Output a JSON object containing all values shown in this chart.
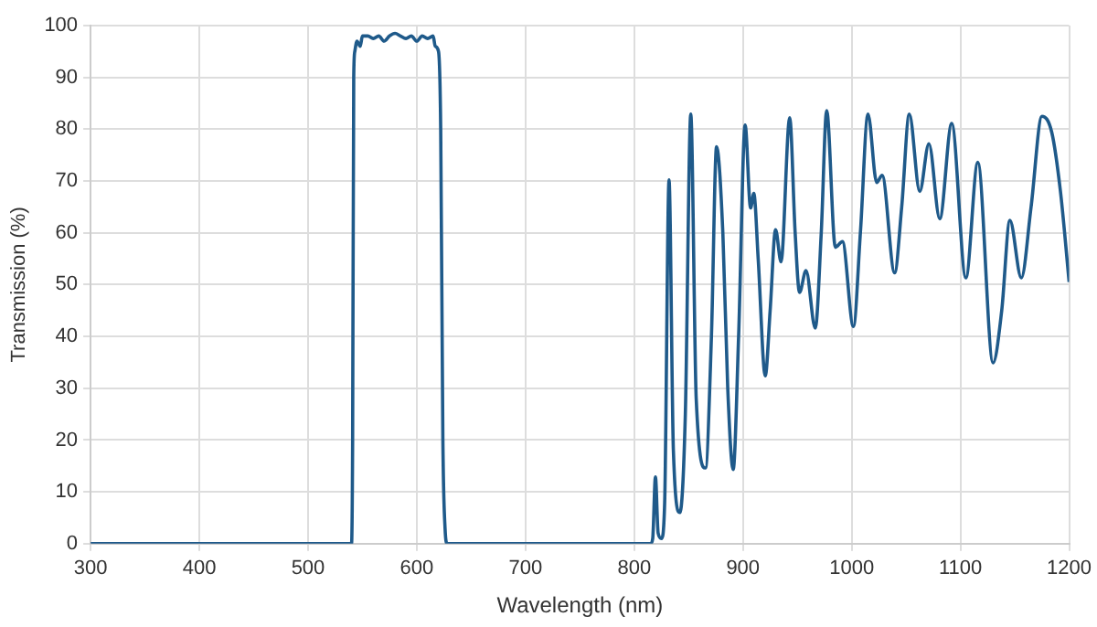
{
  "chart_data": {
    "type": "line",
    "xlabel": "Wavelength (nm)",
    "ylabel": "Transmission (%)",
    "x": [
      300,
      540,
      541,
      542,
      543,
      545,
      548,
      550,
      555,
      560,
      565,
      570,
      575,
      580,
      585,
      590,
      595,
      600,
      605,
      610,
      615,
      617,
      620,
      622,
      624,
      626,
      628,
      815,
      817,
      819.5,
      822,
      825,
      828,
      832,
      836,
      842,
      847,
      852,
      857,
      865.5,
      871,
      875.7,
      881.5,
      886,
      891,
      896,
      902,
      907,
      910,
      914,
      920.5,
      925,
      930,
      935,
      943,
      948,
      952,
      958,
      966.5,
      972,
      977,
      985,
      991.5,
      1001.6,
      1008,
      1015,
      1023,
      1028,
      1039.5,
      1046,
      1053,
      1062.6,
      1071,
      1081,
      1092,
      1105,
      1116,
      1130,
      1138,
      1145.5,
      1156,
      1165,
      1175,
      1184,
      1192,
      1200
    ],
    "series": [
      {
        "color": "#1f5a8a",
        "values": [
          0,
          0,
          20,
          90,
          95,
          97,
          96,
          98,
          98,
          97.5,
          98,
          97,
          98,
          98.5,
          98,
          97.5,
          98,
          97,
          98,
          97.5,
          98,
          96,
          95,
          80,
          20,
          3,
          0,
          0,
          1,
          12.9,
          2,
          1,
          8,
          70.2,
          18,
          6,
          25,
          82.9,
          28,
          14.6,
          40,
          76.6,
          60,
          30,
          14.3,
          40,
          80.8,
          64.8,
          67.6,
          55,
          32.4,
          45,
          60.6,
          54.4,
          82.2,
          60,
          48.5,
          52.7,
          41.6,
          60,
          83.6,
          57.2,
          58.3,
          41.9,
          60,
          82.9,
          69.7,
          71.1,
          52.3,
          65,
          82.9,
          68,
          77.2,
          62.7,
          81.1,
          51.3,
          73.6,
          34.9,
          45,
          62.4,
          51.3,
          65,
          82.5,
          79.4,
          68,
          50.5
        ]
      }
    ],
    "xlim": [
      300,
      1200
    ],
    "xticks": [
      300,
      400,
      500,
      600,
      700,
      800,
      900,
      1000,
      1100,
      1200
    ],
    "ylim": [
      0,
      100
    ],
    "yticks": [
      0,
      10,
      20,
      30,
      40,
      50,
      60,
      70,
      80,
      90,
      100
    ],
    "grid": true,
    "legend": false,
    "marker": "none",
    "line_style": "solid"
  }
}
